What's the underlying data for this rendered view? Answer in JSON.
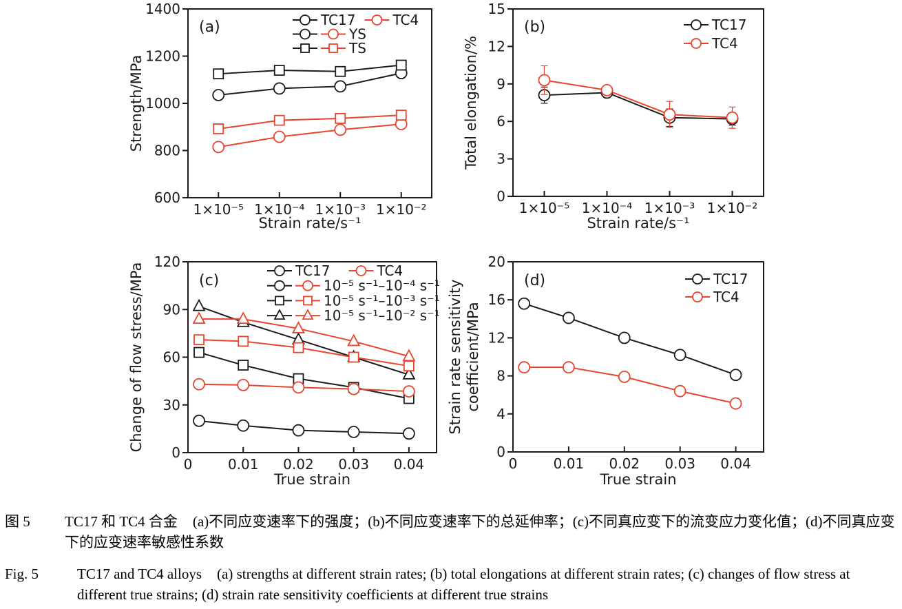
{
  "colors": {
    "black": "#1a1a1a",
    "red": "#e8432d"
  },
  "captions": {
    "zh": {
      "label": "图 5",
      "title": "TC17 和 TC4 合金",
      "desc": "(a)不同应变速率下的强度；(b)不同应变速率下的总延伸率；(c)不同真应变下的流变应力变化值；(d)不同真应变下的应变速率敏感性系数"
    },
    "en": {
      "label": "Fig. 5",
      "title": "TC17 and TC4 alloys",
      "desc": "(a) strengths at different strain rates; (b) total elongations at different strain rates; (c) changes of flow stress at different true strains; (d) strain rate sensitivity coefficients at different true strains"
    }
  },
  "chart_data": [
    {
      "id": "a",
      "type": "line",
      "panel_label": "(a)",
      "xlabel": "Strain rate/s⁻¹",
      "ylabel": [
        "Strength/MPa"
      ],
      "x": {
        "type": "category",
        "categories": [
          "1×10⁻⁵",
          "1×10⁻⁴",
          "1×10⁻³",
          "1×10⁻²"
        ]
      },
      "ylim": [
        600,
        1400
      ],
      "yticks": [
        600,
        800,
        1000,
        1200,
        1400
      ],
      "series": [
        {
          "name": "TC17 YS",
          "color": "black",
          "marker": "circle",
          "values": [
            1035,
            1063,
            1072,
            1128
          ],
          "errors": [
            10,
            8,
            20,
            8
          ]
        },
        {
          "name": "TC17 TS",
          "color": "black",
          "marker": "square",
          "values": [
            1125,
            1140,
            1135,
            1162
          ],
          "errors": [
            10,
            10,
            18,
            10
          ]
        },
        {
          "name": "TC4 YS",
          "color": "red",
          "marker": "circle",
          "values": [
            815,
            858,
            888,
            912
          ],
          "errors": [
            8,
            6,
            8,
            8
          ]
        },
        {
          "name": "TC4 TS",
          "color": "red",
          "marker": "square",
          "values": [
            892,
            928,
            936,
            950
          ],
          "errors": [
            10,
            8,
            8,
            10
          ]
        }
      ],
      "legend_rows": [
        [
          {
            "m": "circle",
            "c": "black"
          },
          {
            "t": "TC17"
          },
          {
            "m": "circle",
            "c": "red"
          },
          {
            "t": "TC4"
          }
        ],
        [
          {
            "m": "circle",
            "c": "black"
          },
          {
            "m": "circle",
            "c": "red"
          },
          {
            "t": "YS"
          }
        ],
        [
          {
            "m": "square",
            "c": "black"
          },
          {
            "m": "square",
            "c": "red"
          },
          {
            "t": "TS"
          }
        ]
      ]
    },
    {
      "id": "b",
      "type": "line",
      "panel_label": "(b)",
      "xlabel": "Strain rate/s⁻¹",
      "ylabel": [
        "Total elongation/%"
      ],
      "x": {
        "type": "category",
        "categories": [
          "1×10⁻⁵",
          "1×10⁻⁴",
          "1×10⁻³",
          "1×10⁻²"
        ]
      },
      "ylim": [
        0,
        15
      ],
      "yticks": [
        0,
        3,
        6,
        9,
        12,
        15
      ],
      "series": [
        {
          "name": "TC17",
          "color": "black",
          "marker": "circle",
          "values": [
            8.1,
            8.3,
            6.3,
            6.2
          ],
          "errors": [
            0.65,
            0.25,
            0.7,
            0.5
          ]
        },
        {
          "name": "TC4",
          "color": "red",
          "marker": "circle",
          "values": [
            9.3,
            8.5,
            6.55,
            6.3
          ],
          "errors": [
            1.15,
            0.3,
            1.05,
            0.85
          ]
        }
      ],
      "legend_rows": [
        [
          {
            "m": "circle",
            "c": "black"
          },
          {
            "t": "TC17"
          }
        ],
        [
          {
            "m": "circle",
            "c": "red"
          },
          {
            "t": "TC4"
          }
        ]
      ]
    },
    {
      "id": "c",
      "type": "line",
      "panel_label": "(c)",
      "xlabel": "True strain",
      "ylabel": [
        "Change of flow stress/MPa"
      ],
      "x": {
        "type": "numeric",
        "lim": [
          0,
          0.045
        ],
        "ticks": [
          0,
          0.01,
          0.02,
          0.03,
          0.04
        ],
        "tick_labels": [
          "0",
          "0.01",
          "0.02",
          "0.03",
          "0.04"
        ],
        "values": [
          0.002,
          0.01,
          0.02,
          0.03,
          0.04
        ]
      },
      "ylim": [
        0,
        120
      ],
      "yticks": [
        0,
        30,
        60,
        90,
        120
      ],
      "series": [
        {
          "name": "TC17 1e-5 to 1e-4",
          "color": "black",
          "marker": "circle",
          "values": [
            20,
            17,
            14,
            13,
            12
          ]
        },
        {
          "name": "TC17 1e-5 to 1e-3",
          "color": "black",
          "marker": "square",
          "values": [
            63,
            55,
            46.5,
            41,
            34
          ]
        },
        {
          "name": "TC17 1e-5 to 1e-2",
          "color": "black",
          "marker": "triangle",
          "values": [
            92,
            82,
            71,
            60,
            49
          ]
        },
        {
          "name": "TC4 1e-5 to 1e-4",
          "color": "red",
          "marker": "circle",
          "values": [
            43,
            42.5,
            41,
            40,
            38.5
          ]
        },
        {
          "name": "TC4 1e-5 to 1e-3",
          "color": "red",
          "marker": "square",
          "values": [
            71,
            70,
            66,
            60,
            54.5
          ]
        },
        {
          "name": "TC4 1e-5 to 1e-2",
          "color": "red",
          "marker": "triangle",
          "values": [
            84,
            84,
            78,
            70,
            60.5
          ]
        }
      ],
      "legend_rows": [
        [
          {
            "m": "circle",
            "c": "black"
          },
          {
            "t": "TC17"
          },
          {
            "gap": 14
          },
          {
            "m": "circle",
            "c": "red"
          },
          {
            "t": "TC4"
          }
        ],
        [
          {
            "m": "circle",
            "c": "black"
          },
          {
            "m": "circle",
            "c": "red"
          },
          {
            "t": "10⁻⁵ s⁻¹–10⁻⁴ s⁻¹"
          }
        ],
        [
          {
            "m": "square",
            "c": "black"
          },
          {
            "m": "square",
            "c": "red"
          },
          {
            "t": "10⁻⁵ s⁻¹–10⁻³ s⁻¹"
          }
        ],
        [
          {
            "m": "triangle",
            "c": "black"
          },
          {
            "m": "triangle",
            "c": "red"
          },
          {
            "t": "10⁻⁵ s⁻¹–10⁻² s⁻¹"
          }
        ]
      ]
    },
    {
      "id": "d",
      "type": "line",
      "panel_label": "(d)",
      "xlabel": "True strain",
      "ylabel": [
        "Strain rate sensitivity",
        "coefficient/MPa"
      ],
      "x": {
        "type": "numeric",
        "lim": [
          0,
          0.045
        ],
        "ticks": [
          0,
          0.01,
          0.02,
          0.03,
          0.04
        ],
        "tick_labels": [
          "0",
          "0.01",
          "0.02",
          "0.03",
          "0.04"
        ],
        "values": [
          0.002,
          0.01,
          0.02,
          0.03,
          0.04
        ]
      },
      "ylim": [
        0,
        20
      ],
      "yticks": [
        0,
        4,
        8,
        12,
        16,
        20
      ],
      "series": [
        {
          "name": "TC17",
          "color": "black",
          "marker": "circle",
          "values": [
            15.6,
            14.1,
            12.0,
            10.2,
            8.1
          ]
        },
        {
          "name": "TC4",
          "color": "red",
          "marker": "circle",
          "values": [
            8.9,
            8.9,
            7.9,
            6.4,
            5.1
          ]
        }
      ],
      "legend_rows": [
        [
          {
            "m": "circle",
            "c": "black"
          },
          {
            "t": "TC17"
          }
        ],
        [
          {
            "m": "circle",
            "c": "red"
          },
          {
            "t": "TC4"
          }
        ]
      ]
    }
  ]
}
